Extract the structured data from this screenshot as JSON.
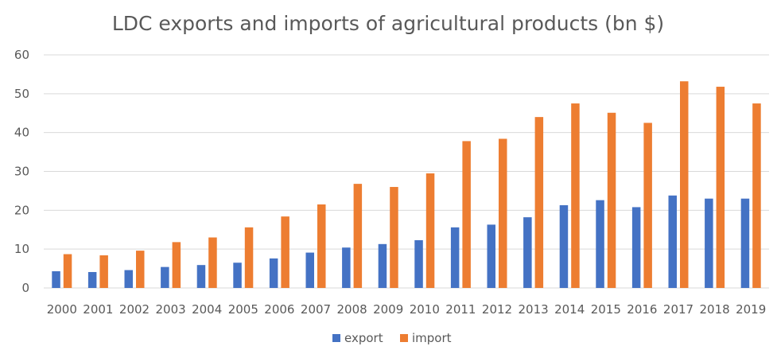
{
  "chart_data": {
    "type": "bar",
    "title": "LDC exports and imports of agricultural products (bn $)",
    "xlabel": "",
    "ylabel": "",
    "categories": [
      "2000",
      "2001",
      "2002",
      "2003",
      "2004",
      "2005",
      "2006",
      "2007",
      "2008",
      "2009",
      "2010",
      "2011",
      "2012",
      "2013",
      "2014",
      "2015",
      "2016",
      "2017",
      "2018",
      "2019"
    ],
    "series": [
      {
        "name": "export",
        "color": "#4472c4",
        "values": [
          4.3,
          4.1,
          4.6,
          5.4,
          5.9,
          6.5,
          7.6,
          9.1,
          10.4,
          11.3,
          12.3,
          15.6,
          16.3,
          18.2,
          21.3,
          22.6,
          20.8,
          23.8,
          23.0,
          23.0
        ]
      },
      {
        "name": "import",
        "color": "#ed7d31",
        "values": [
          8.7,
          8.4,
          9.6,
          11.8,
          13.0,
          15.6,
          18.4,
          21.5,
          26.8,
          26.0,
          29.5,
          37.8,
          38.4,
          44.0,
          47.5,
          45.1,
          42.5,
          53.2,
          51.8,
          47.5
        ]
      }
    ],
    "ylim": [
      0,
      60
    ],
    "yticks": [
      0,
      10,
      20,
      30,
      40,
      50,
      60
    ],
    "grid": true,
    "legend_position": "bottom-center",
    "gridline_color": "#d9d9d9",
    "text_color": "#595959"
  }
}
